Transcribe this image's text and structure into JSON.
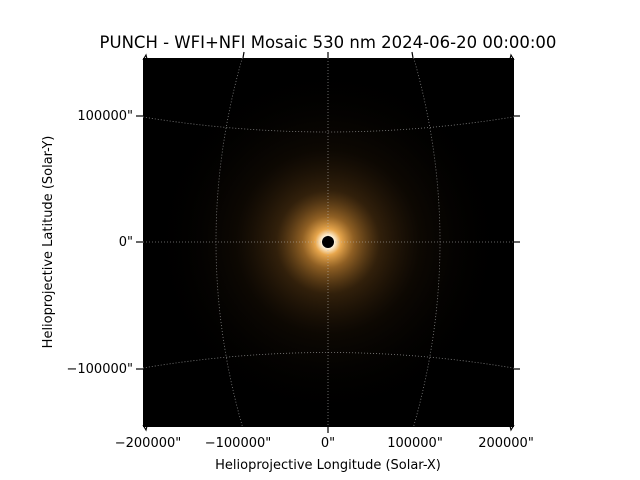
{
  "figure": {
    "title": "PUNCH - WFI+NFI Mosaic 530 nm 2024-06-20 00:00:00",
    "xlabel": "Helioprojective Longitude (Solar-X)",
    "ylabel": "Helioprojective Latitude (Solar-Y)",
    "x_ticks": [
      "−200000\"",
      "−100000\"",
      "0\"",
      "100000\"",
      "200000\""
    ],
    "y_ticks": [
      "100000\"",
      "0\"",
      "−100000\""
    ],
    "colors": {
      "background": "#ffffff",
      "plot_background": "#000000",
      "corona_glow": "#d9963c",
      "grid": "#bbbbbb"
    },
    "grid": "on",
    "coordinate_grid": "dotted heliographic"
  }
}
